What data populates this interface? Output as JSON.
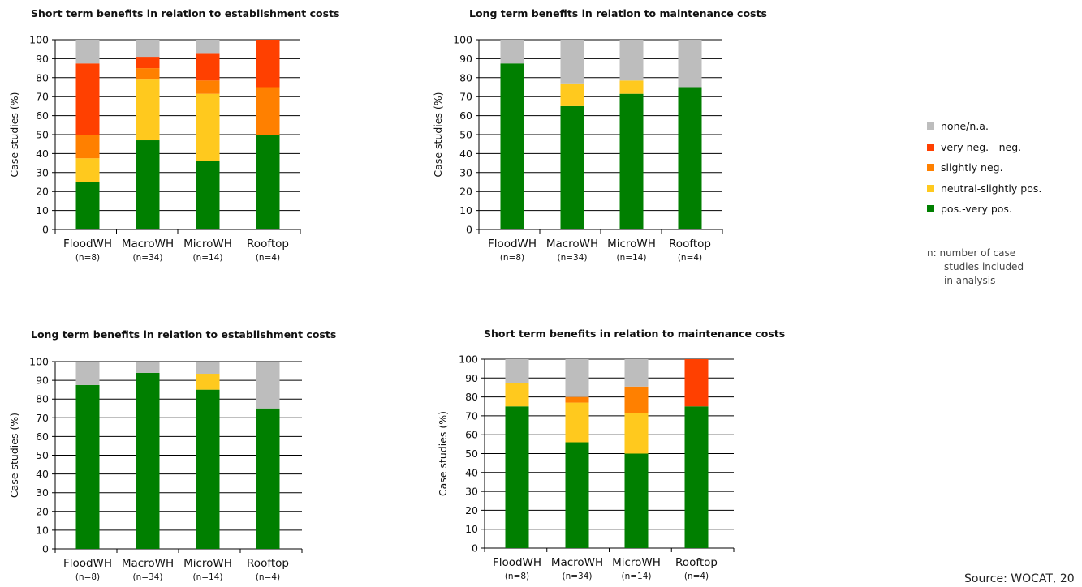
{
  "colors": {
    "none_na": "#bdbdbd",
    "very_neg": "#ff4000",
    "slightly_neg": "#ff8000",
    "neutral_slightly_pos": "#ffc91e",
    "pos_very_pos": "#007f00"
  },
  "legend": {
    "items": [
      {
        "key": "none_na",
        "label": "none/n.a."
      },
      {
        "key": "very_neg",
        "label": "very neg. - neg."
      },
      {
        "key": "slightly_neg",
        "label": "slightly neg."
      },
      {
        "key": "neutral_slightly_pos",
        "label": "neutral-slightly pos."
      },
      {
        "key": "pos_very_pos",
        "label": "pos.-very pos."
      }
    ]
  },
  "note": {
    "line1": "n: number of case",
    "line2": "studies included",
    "line3": "in analysis"
  },
  "source": "Source: WOCAT, 20",
  "chart_data": [
    {
      "type": "bar",
      "stacked": true,
      "title": "Short term benefits in relation to establishment costs",
      "ylabel": "Case studies (%)",
      "ylim": [
        0,
        100
      ],
      "yticks": [
        0,
        10,
        20,
        30,
        40,
        50,
        60,
        70,
        80,
        90,
        100
      ],
      "categories": [
        "FloodWH",
        "MacroWH",
        "MicroWH",
        "Rooftop"
      ],
      "n_labels": [
        "(n=8)",
        "(n=34)",
        "(n=14)",
        "(n=4)"
      ],
      "series": [
        {
          "name": "pos.-very pos.",
          "key": "pos_very_pos",
          "values": [
            25,
            47,
            36,
            50
          ]
        },
        {
          "name": "neutral-slightly pos.",
          "key": "neutral_slightly_pos",
          "values": [
            12.5,
            32,
            35.5,
            0
          ]
        },
        {
          "name": "slightly neg.",
          "key": "slightly_neg",
          "values": [
            12.5,
            6,
            7,
            25
          ]
        },
        {
          "name": "very neg. - neg.",
          "key": "very_neg",
          "values": [
            37.5,
            6,
            14.5,
            25
          ]
        },
        {
          "name": "none/n.a.",
          "key": "none_na",
          "values": [
            12.5,
            9,
            7,
            0
          ]
        }
      ]
    },
    {
      "type": "bar",
      "stacked": true,
      "title": "Long term benefits in relation to maintenance costs",
      "ylabel": "Case studies (%)",
      "ylim": [
        0,
        100
      ],
      "yticks": [
        0,
        10,
        20,
        30,
        40,
        50,
        60,
        70,
        80,
        90,
        100
      ],
      "categories": [
        "FloodWH",
        "MacroWH",
        "MicroWH",
        "Rooftop"
      ],
      "n_labels": [
        "(n=8)",
        "(n=34)",
        "(n=14)",
        "(n=4)"
      ],
      "series": [
        {
          "name": "pos.-very pos.",
          "key": "pos_very_pos",
          "values": [
            87.5,
            65,
            71.5,
            75
          ]
        },
        {
          "name": "neutral-slightly pos.",
          "key": "neutral_slightly_pos",
          "values": [
            0,
            12,
            7,
            0
          ]
        },
        {
          "name": "slightly neg.",
          "key": "slightly_neg",
          "values": [
            0,
            0,
            0,
            0
          ]
        },
        {
          "name": "very neg. - neg.",
          "key": "very_neg",
          "values": [
            0,
            0,
            0,
            0
          ]
        },
        {
          "name": "none/n.a.",
          "key": "none_na",
          "values": [
            12.5,
            23,
            21.5,
            25
          ]
        }
      ]
    },
    {
      "type": "bar",
      "stacked": true,
      "title": "Long term benefits in relation to establishment costs",
      "ylabel": "Case studies (%)",
      "ylim": [
        0,
        100
      ],
      "yticks": [
        0,
        10,
        20,
        30,
        40,
        50,
        60,
        70,
        80,
        90,
        100
      ],
      "categories": [
        "FloodWH",
        "MacroWH",
        "MicroWH",
        "Rooftop"
      ],
      "n_labels": [
        "(n=8)",
        "(n=34)",
        "(n=14)",
        "(n=4)"
      ],
      "series": [
        {
          "name": "pos.-very pos.",
          "key": "pos_very_pos",
          "values": [
            87.5,
            94,
            85,
            75
          ]
        },
        {
          "name": "neutral-slightly pos.",
          "key": "neutral_slightly_pos",
          "values": [
            0,
            0,
            8.5,
            0
          ]
        },
        {
          "name": "slightly neg.",
          "key": "slightly_neg",
          "values": [
            0,
            0,
            0,
            0
          ]
        },
        {
          "name": "very neg. - neg.",
          "key": "very_neg",
          "values": [
            0,
            0,
            0,
            0
          ]
        },
        {
          "name": "none/n.a.",
          "key": "none_na",
          "values": [
            12.5,
            6,
            6.5,
            25
          ]
        }
      ]
    },
    {
      "type": "bar",
      "stacked": true,
      "title": "Short term benefits in relation to maintenance costs",
      "ylabel": "Case studies (%)",
      "ylim": [
        0,
        100
      ],
      "yticks": [
        0,
        10,
        20,
        30,
        40,
        50,
        60,
        70,
        80,
        90,
        100
      ],
      "categories": [
        "FloodWH",
        "MacroWH",
        "MicroWH",
        "Rooftop"
      ],
      "n_labels": [
        "(n=8)",
        "(n=34)",
        "(n=14)",
        "(n=4)"
      ],
      "series": [
        {
          "name": "pos.-very pos.",
          "key": "pos_very_pos",
          "values": [
            75,
            56,
            50,
            75
          ]
        },
        {
          "name": "neutral-slightly pos.",
          "key": "neutral_slightly_pos",
          "values": [
            12.5,
            21,
            21.5,
            0
          ]
        },
        {
          "name": "slightly neg.",
          "key": "slightly_neg",
          "values": [
            0,
            3,
            14,
            0
          ]
        },
        {
          "name": "very neg. - neg.",
          "key": "very_neg",
          "values": [
            0,
            0,
            0,
            25
          ]
        },
        {
          "name": "none/n.a.",
          "key": "none_na",
          "values": [
            12.5,
            20,
            14.5,
            0
          ]
        }
      ]
    }
  ]
}
